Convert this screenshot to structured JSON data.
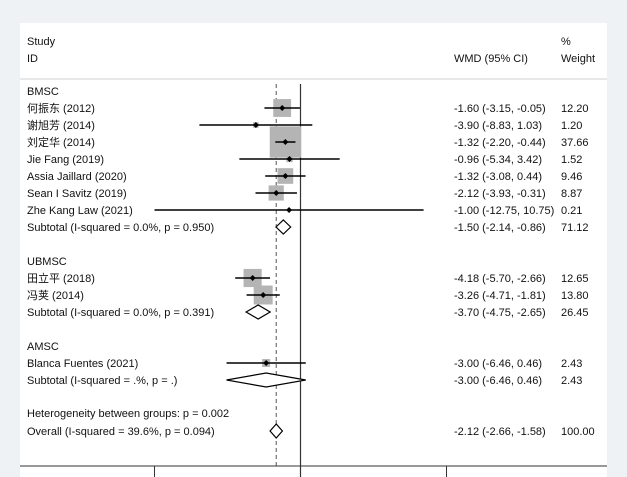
{
  "chart_data": {
    "type": "forest",
    "header": {
      "study": "Study",
      "id": "ID",
      "effect": "WMD (95% CI)",
      "pct": "%",
      "weight": "Weight"
    },
    "xlim": [
      -12.75,
      12.75
    ],
    "xticks": [
      -12.75,
      0,
      12.75
    ],
    "null_line": 0,
    "overall_line": -2.12,
    "colors": {
      "box": "#b4b4b4",
      "line": "#000000",
      "background": "#eef2f5",
      "panel": "#ffffff"
    },
    "groups": [
      {
        "name": "BMSC",
        "studies": [
          {
            "label": "何振东 (2012)",
            "est": -1.6,
            "lo": -3.15,
            "hi": -0.05,
            "text": "-1.60 (-3.15, -0.05)",
            "weight": "12.20",
            "w": 12.2
          },
          {
            "label": "谢旭芳 (2014)",
            "est": -3.9,
            "lo": -8.83,
            "hi": 1.03,
            "text": "-3.90 (-8.83, 1.03)",
            "weight": "1.20",
            "w": 1.2
          },
          {
            "label": "刘定华 (2014)",
            "est": -1.32,
            "lo": -2.2,
            "hi": -0.44,
            "text": "-1.32 (-2.20, -0.44)",
            "weight": "37.66",
            "w": 37.66
          },
          {
            "label": "Jie Fang (2019)",
            "est": -0.96,
            "lo": -5.34,
            "hi": 3.42,
            "text": "-0.96 (-5.34, 3.42)",
            "weight": "1.52",
            "w": 1.52
          },
          {
            "label": "Assia Jaillard (2020)",
            "est": -1.32,
            "lo": -3.08,
            "hi": 0.44,
            "text": "-1.32 (-3.08, 0.44)",
            "weight": "9.46",
            "w": 9.46
          },
          {
            "label": "Sean I Savitz (2019)",
            "est": -2.12,
            "lo": -3.93,
            "hi": -0.31,
            "text": "-2.12 (-3.93, -0.31)",
            "weight": "8.87",
            "w": 8.87
          },
          {
            "label": "Zhe Kang Law (2021)",
            "est": -1.0,
            "lo": -12.75,
            "hi": 10.75,
            "text": "-1.00 (-12.75, 10.75)",
            "weight": "0.21",
            "w": 0.21
          }
        ],
        "subtotal": {
          "label": "Subtotal  (I-squared = 0.0%, p = 0.950)",
          "est": -1.5,
          "lo": -2.14,
          "hi": -0.86,
          "text": "-1.50 (-2.14, -0.86)",
          "weight": "71.12"
        }
      },
      {
        "name": "UBMSC",
        "studies": [
          {
            "label": "田立平 (2018)",
            "est": -4.18,
            "lo": -5.7,
            "hi": -2.66,
            "text": "-4.18 (-5.70, -2.66)",
            "weight": "12.65",
            "w": 12.65
          },
          {
            "label": "冯荚 (2014)",
            "est": -3.26,
            "lo": -4.71,
            "hi": -1.81,
            "text": "-3.26 (-4.71, -1.81)",
            "weight": "13.80",
            "w": 13.8
          }
        ],
        "subtotal": {
          "label": "Subtotal  (I-squared = 0.0%, p = 0.391)",
          "est": -3.7,
          "lo": -4.75,
          "hi": -2.65,
          "text": "-3.70 (-4.75, -2.65)",
          "weight": "26.45"
        }
      },
      {
        "name": "AMSC",
        "studies": [
          {
            "label": "Blanca Fuentes (2021)",
            "est": -3.0,
            "lo": -6.46,
            "hi": 0.46,
            "text": "-3.00 (-6.46, 0.46)",
            "weight": "2.43",
            "w": 2.43
          }
        ],
        "subtotal": {
          "label": "Subtotal  (I-squared = .%, p = .)",
          "est": -3.0,
          "lo": -6.46,
          "hi": 0.46,
          "text": "-3.00 (-6.46, 0.46)",
          "weight": "2.43"
        }
      }
    ],
    "heterogeneity": "Heterogeneity between groups: p = 0.002",
    "overall": {
      "label": "Overall  (I-squared = 39.6%, p = 0.094)",
      "est": -2.12,
      "lo": -2.66,
      "hi": -1.58,
      "text": "-2.12 (-2.66, -1.58)",
      "weight": "100.00"
    }
  }
}
